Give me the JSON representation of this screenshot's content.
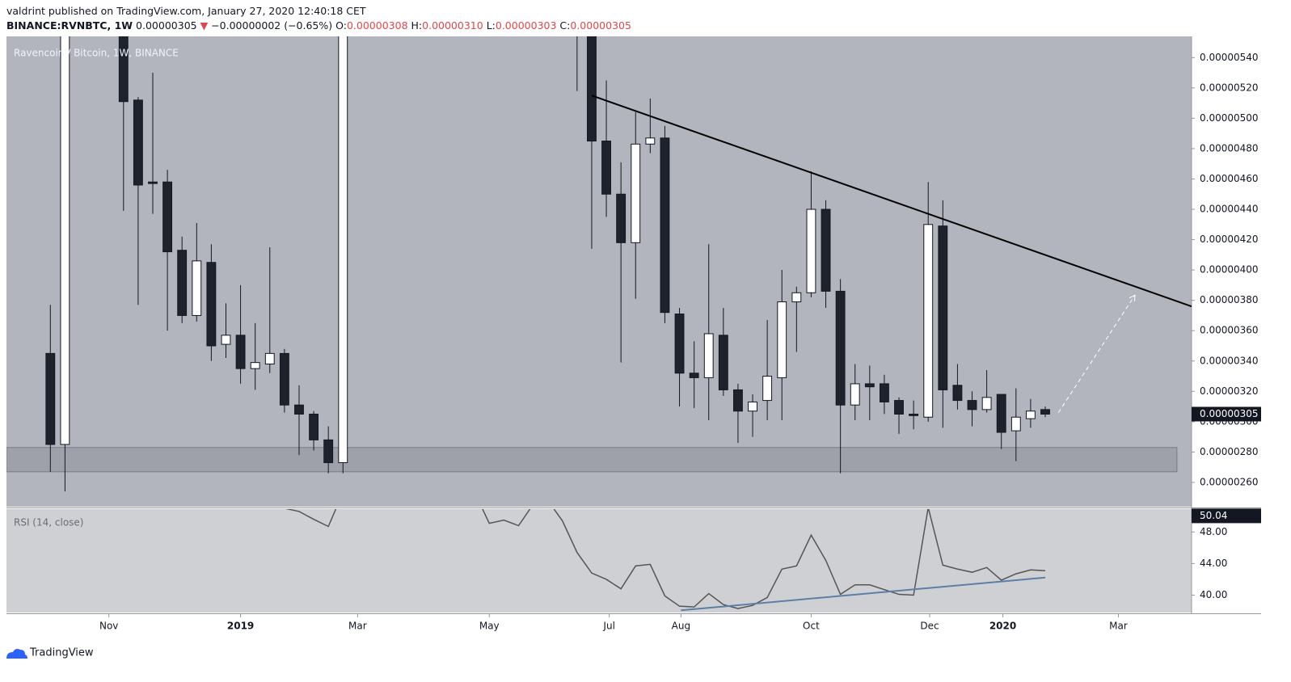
{
  "header": {
    "publisher": "valdrint published on TradingView.com, January 27, 2020 12:40:18 CET",
    "symbol": "BINANCE:RVNBTC, 1W",
    "last": "0.00000305",
    "arrow": "▼",
    "change": "−0.00000002 (−0.65%)",
    "ohlc": [
      {
        "key": "O:",
        "value": "0.00000308"
      },
      {
        "key": "H:",
        "value": "0.00000310"
      },
      {
        "key": "L:",
        "value": "0.00000303"
      },
      {
        "key": "C:",
        "value": "0.00000305"
      }
    ]
  },
  "footer": {
    "brand": "TradingView"
  },
  "chart_data": [
    {
      "type": "candlestick",
      "title": "Ravencoin / Bitcoin, 1W, BINANCE",
      "up_color": "#ffffff",
      "down_color": "#1e222d",
      "x": [
        0,
        1,
        5,
        6,
        7,
        8,
        9,
        10,
        11,
        12,
        13,
        14,
        15,
        16,
        17,
        18,
        19,
        20,
        36,
        37,
        38,
        39,
        40,
        41,
        42,
        43,
        44,
        45,
        46,
        47,
        48,
        49,
        50,
        51,
        52,
        53,
        54,
        55,
        56,
        57,
        58,
        59,
        60,
        61,
        62,
        63,
        64,
        65,
        66,
        67,
        68
      ],
      "open": [
        3.45e-06,
        2.85e-06,
        5.8e-06,
        5.12e-06,
        4.58e-06,
        4.58e-06,
        4.13e-06,
        3.7e-06,
        4.05e-06,
        3.51e-06,
        3.57e-06,
        3.35e-06,
        3.38e-06,
        3.45e-06,
        3.11e-06,
        3.05e-06,
        2.88e-06,
        2.73e-06,
        6.2e-06,
        5.8e-06,
        4.85e-06,
        4.5e-06,
        4.18e-06,
        4.83e-06,
        4.87e-06,
        3.71e-06,
        3.32e-06,
        3.29e-06,
        3.57e-06,
        3.21e-06,
        3.07e-06,
        3.14e-06,
        3.29e-06,
        3.79e-06,
        3.85e-06,
        4.4e-06,
        3.86e-06,
        3.11e-06,
        3.25e-06,
        3.25e-06,
        3.14e-06,
        3.05e-06,
        3.03e-06,
        4.29e-06,
        3.24e-06,
        3.14e-06,
        3.08e-06,
        3.18e-06,
        2.94e-06,
        3.02e-06,
        3.08e-06
      ],
      "high": [
        3.77e-06,
        6.2e-06,
        6e-06,
        5.14e-06,
        5.3e-06,
        4.66e-06,
        4.22e-06,
        4.31e-06,
        4.17e-06,
        3.78e-06,
        3.9e-06,
        3.65e-06,
        4.15e-06,
        3.48e-06,
        3.24e-06,
        3.07e-06,
        2.97e-06,
        6.2e-06,
        6.4e-06,
        6e-06,
        5.25e-06,
        4.71e-06,
        5.04e-06,
        5.13e-06,
        4.95e-06,
        3.75e-06,
        3.53e-06,
        4.17e-06,
        3.75e-06,
        3.25e-06,
        3.18e-06,
        3.67e-06,
        4e-06,
        3.89e-06,
        4.65e-06,
        4.46e-06,
        3.94e-06,
        3.38e-06,
        3.37e-06,
        3.31e-06,
        3.16e-06,
        3.14e-06,
        4.58e-06,
        4.46e-06,
        3.38e-06,
        3.2e-06,
        3.34e-06,
        3.18e-06,
        3.22e-06,
        3.15e-06,
        3.1e-06
      ],
      "low": [
        2.67e-06,
        2.54e-06,
        4.39e-06,
        3.77e-06,
        4.37e-06,
        3.6e-06,
        3.65e-06,
        3.66e-06,
        3.4e-06,
        3.42e-06,
        3.25e-06,
        3.21e-06,
        3.32e-06,
        3.06e-06,
        2.78e-06,
        2.81e-06,
        2.66e-06,
        2.66e-06,
        5.18e-06,
        4.14e-06,
        4.35e-06,
        3.39e-06,
        3.81e-06,
        4.77e-06,
        3.65e-06,
        3.1e-06,
        3.09e-06,
        3.01e-06,
        3.17e-06,
        2.86e-06,
        2.9e-06,
        3.01e-06,
        3.01e-06,
        3.46e-06,
        3.82e-06,
        3.75e-06,
        2.66e-06,
        3.01e-06,
        3.01e-06,
        3.05e-06,
        2.92e-06,
        2.95e-06,
        3e-06,
        2.96e-06,
        3.08e-06,
        2.97e-06,
        3.06e-06,
        2.82e-06,
        2.74e-06,
        2.96e-06,
        3.03e-06
      ],
      "close": [
        2.85e-06,
        6e-06,
        5.11e-06,
        4.56e-06,
        4.57e-06,
        4.12e-06,
        3.7e-06,
        4.06e-06,
        3.5e-06,
        3.57e-06,
        3.35e-06,
        3.39e-06,
        3.45e-06,
        3.11e-06,
        3.05e-06,
        2.88e-06,
        2.73e-06,
        6e-06,
        5.8e-06,
        4.85e-06,
        4.5e-06,
        4.18e-06,
        4.83e-06,
        4.87e-06,
        3.72e-06,
        3.32e-06,
        3.29e-06,
        3.58e-06,
        3.21e-06,
        3.07e-06,
        3.13e-06,
        3.3e-06,
        3.79e-06,
        3.85e-06,
        4.4e-06,
        3.86e-06,
        3.11e-06,
        3.25e-06,
        3.23e-06,
        3.13e-06,
        3.05e-06,
        3.04e-06,
        4.3e-06,
        3.21e-06,
        3.14e-06,
        3.08e-06,
        3.16e-06,
        2.93e-06,
        3.03e-06,
        3.07e-06,
        3.05e-06
      ],
      "xlim": [
        -3,
        78
      ],
      "xticks": [
        {
          "value": 4,
          "label": "Nov"
        },
        {
          "value": 13,
          "label": "2019"
        },
        {
          "value": 21,
          "label": "Mar"
        },
        {
          "value": 30,
          "label": "May"
        },
        {
          "value": 38.2,
          "label": "Jul"
        },
        {
          "value": 43.1,
          "label": "Aug"
        },
        {
          "value": 52,
          "label": "Oct"
        },
        {
          "value": 60.1,
          "label": "Dec"
        },
        {
          "value": 65.1,
          "label": "2020"
        },
        {
          "value": 73,
          "label": "Mar"
        }
      ],
      "ylim": [
        2.44e-06,
        5.54e-06
      ],
      "yticks": [
        {
          "value": 2.6e-06,
          "label": "0.00000260"
        },
        {
          "value": 2.8e-06,
          "label": "0.00000280"
        },
        {
          "value": 3e-06,
          "label": "0.00000300"
        },
        {
          "value": 3.2e-06,
          "label": "0.00000320"
        },
        {
          "value": 3.4e-06,
          "label": "0.00000340"
        },
        {
          "value": 3.6e-06,
          "label": "0.00000360"
        },
        {
          "value": 3.8e-06,
          "label": "0.00000380"
        },
        {
          "value": 4e-06,
          "label": "0.00000400"
        },
        {
          "value": 4.2e-06,
          "label": "0.00000420"
        },
        {
          "value": 4.4e-06,
          "label": "0.00000440"
        },
        {
          "value": 4.6e-06,
          "label": "0.00000460"
        },
        {
          "value": 4.8e-06,
          "label": "0.00000480"
        },
        {
          "value": 5e-06,
          "label": "0.00000500"
        },
        {
          "value": 5.2e-06,
          "label": "0.00000520"
        },
        {
          "value": 5.4e-06,
          "label": "0.00000540"
        }
      ],
      "price_marker": {
        "value": 3.05e-06,
        "label": "0.00000305"
      },
      "trendline": {
        "x": [
          37,
          78
        ],
        "y": [
          5.15e-06,
          3.76e-06
        ],
        "color": "#000000"
      },
      "arrow": {
        "x": [
          68.9,
          74.1
        ],
        "y": [
          3.06e-06,
          3.83e-06
        ],
        "color": "#ffffff"
      },
      "zone": {
        "x": [
          -3,
          77
        ],
        "y": [
          2.67e-06,
          2.83e-06
        ]
      }
    },
    {
      "type": "line",
      "title": "RSI (14, close)",
      "color": "#555555",
      "x": [
        16,
        17,
        18,
        19,
        20,
        29,
        30,
        31,
        32,
        33,
        34,
        35,
        36,
        37,
        38,
        39,
        40,
        41,
        42,
        43,
        44,
        45,
        46,
        47,
        48,
        49,
        50,
        51,
        52,
        53,
        54,
        55,
        56,
        57,
        58,
        59,
        60,
        61,
        62,
        63,
        64,
        65,
        66,
        67,
        68
      ],
      "values": [
        51.0,
        50.6,
        49.6,
        48.7,
        53,
        53,
        49.1,
        49.5,
        48.8,
        51.5,
        52,
        49.4,
        45.4,
        42.8,
        42.0,
        40.8,
        43.7,
        43.9,
        39.9,
        38.6,
        38.5,
        40.2,
        38.8,
        38.3,
        38.7,
        39.7,
        43.3,
        43.7,
        47.6,
        44.4,
        40.1,
        41.3,
        41.3,
        40.7,
        40.1,
        40.0,
        51.1,
        43.8,
        43.3,
        42.9,
        43.5,
        41.9,
        42.7,
        43.2,
        43.1
      ],
      "xlim": [
        -3,
        78
      ],
      "ylim": [
        37.8,
        50.9
      ],
      "yticks": [
        {
          "value": 40,
          "label": "40.00"
        },
        {
          "value": 44,
          "label": "44.00"
        },
        {
          "value": 48,
          "label": "48.00"
        }
      ],
      "marker": 50.04,
      "trendline": {
        "x": [
          43.1,
          68
        ],
        "y": [
          38.08,
          42.23
        ],
        "color": "#5b7fa6"
      }
    }
  ]
}
